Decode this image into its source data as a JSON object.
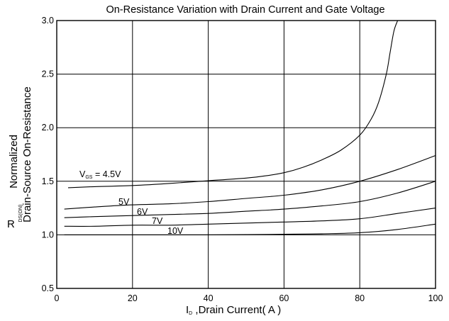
{
  "chart_data": {
    "type": "line",
    "title": "On-Resistance Variation with Drain Current and Gate Voltage",
    "xlabel": {
      "main": "I",
      "subscript": "D",
      "rest": " ,Drain Current( A )"
    },
    "ylabel": {
      "symbol": "R",
      "subscript": "DS(ON)",
      "line1": "Normalized",
      "line2": "Drain-Source On-Resistance"
    },
    "xlim": [
      0,
      100
    ],
    "ylim": [
      0.5,
      3.0
    ],
    "x_ticks": [
      "0",
      "20",
      "40",
      "60",
      "80",
      "100"
    ],
    "y_ticks": [
      "0.5",
      "1.0",
      "1.5",
      "2.0",
      "2.5",
      "3.0"
    ],
    "grid": true,
    "series": [
      {
        "name": "V_GS = 4.5V",
        "label_main": "V",
        "label_sub": "GS",
        "label_rest": " = 4.5V",
        "x": [
          3,
          10,
          20,
          30,
          40,
          50,
          55,
          60,
          65,
          70,
          75,
          80,
          83,
          85,
          87,
          88,
          89,
          90
        ],
        "y": [
          1.44,
          1.45,
          1.46,
          1.48,
          1.505,
          1.53,
          1.55,
          1.58,
          1.63,
          1.7,
          1.79,
          1.93,
          2.08,
          2.24,
          2.5,
          2.7,
          2.9,
          3.0
        ]
      },
      {
        "name": "5V",
        "label_main": "5V",
        "x": [
          2,
          10,
          20,
          30,
          40,
          50,
          60,
          70,
          80,
          90,
          100
        ],
        "y": [
          1.24,
          1.26,
          1.28,
          1.29,
          1.31,
          1.34,
          1.37,
          1.42,
          1.5,
          1.61,
          1.74
        ]
      },
      {
        "name": "6V",
        "label_main": "6V",
        "x": [
          2,
          10,
          20,
          30,
          40,
          50,
          60,
          70,
          80,
          90,
          100
        ],
        "y": [
          1.16,
          1.17,
          1.18,
          1.19,
          1.2,
          1.22,
          1.24,
          1.27,
          1.31,
          1.39,
          1.5
        ]
      },
      {
        "name": "7V",
        "label_main": "7V",
        "x": [
          2,
          10,
          20,
          30,
          40,
          50,
          60,
          70,
          80,
          90,
          100
        ],
        "y": [
          1.08,
          1.08,
          1.09,
          1.09,
          1.1,
          1.11,
          1.12,
          1.13,
          1.15,
          1.2,
          1.25
        ]
      },
      {
        "name": "10V",
        "label_main": "10V",
        "x": [
          2,
          20,
          40,
          60,
          70,
          80,
          90,
          100
        ],
        "y": [
          1.0,
          1.0,
          1.0,
          1.005,
          1.01,
          1.02,
          1.05,
          1.1
        ]
      }
    ]
  }
}
